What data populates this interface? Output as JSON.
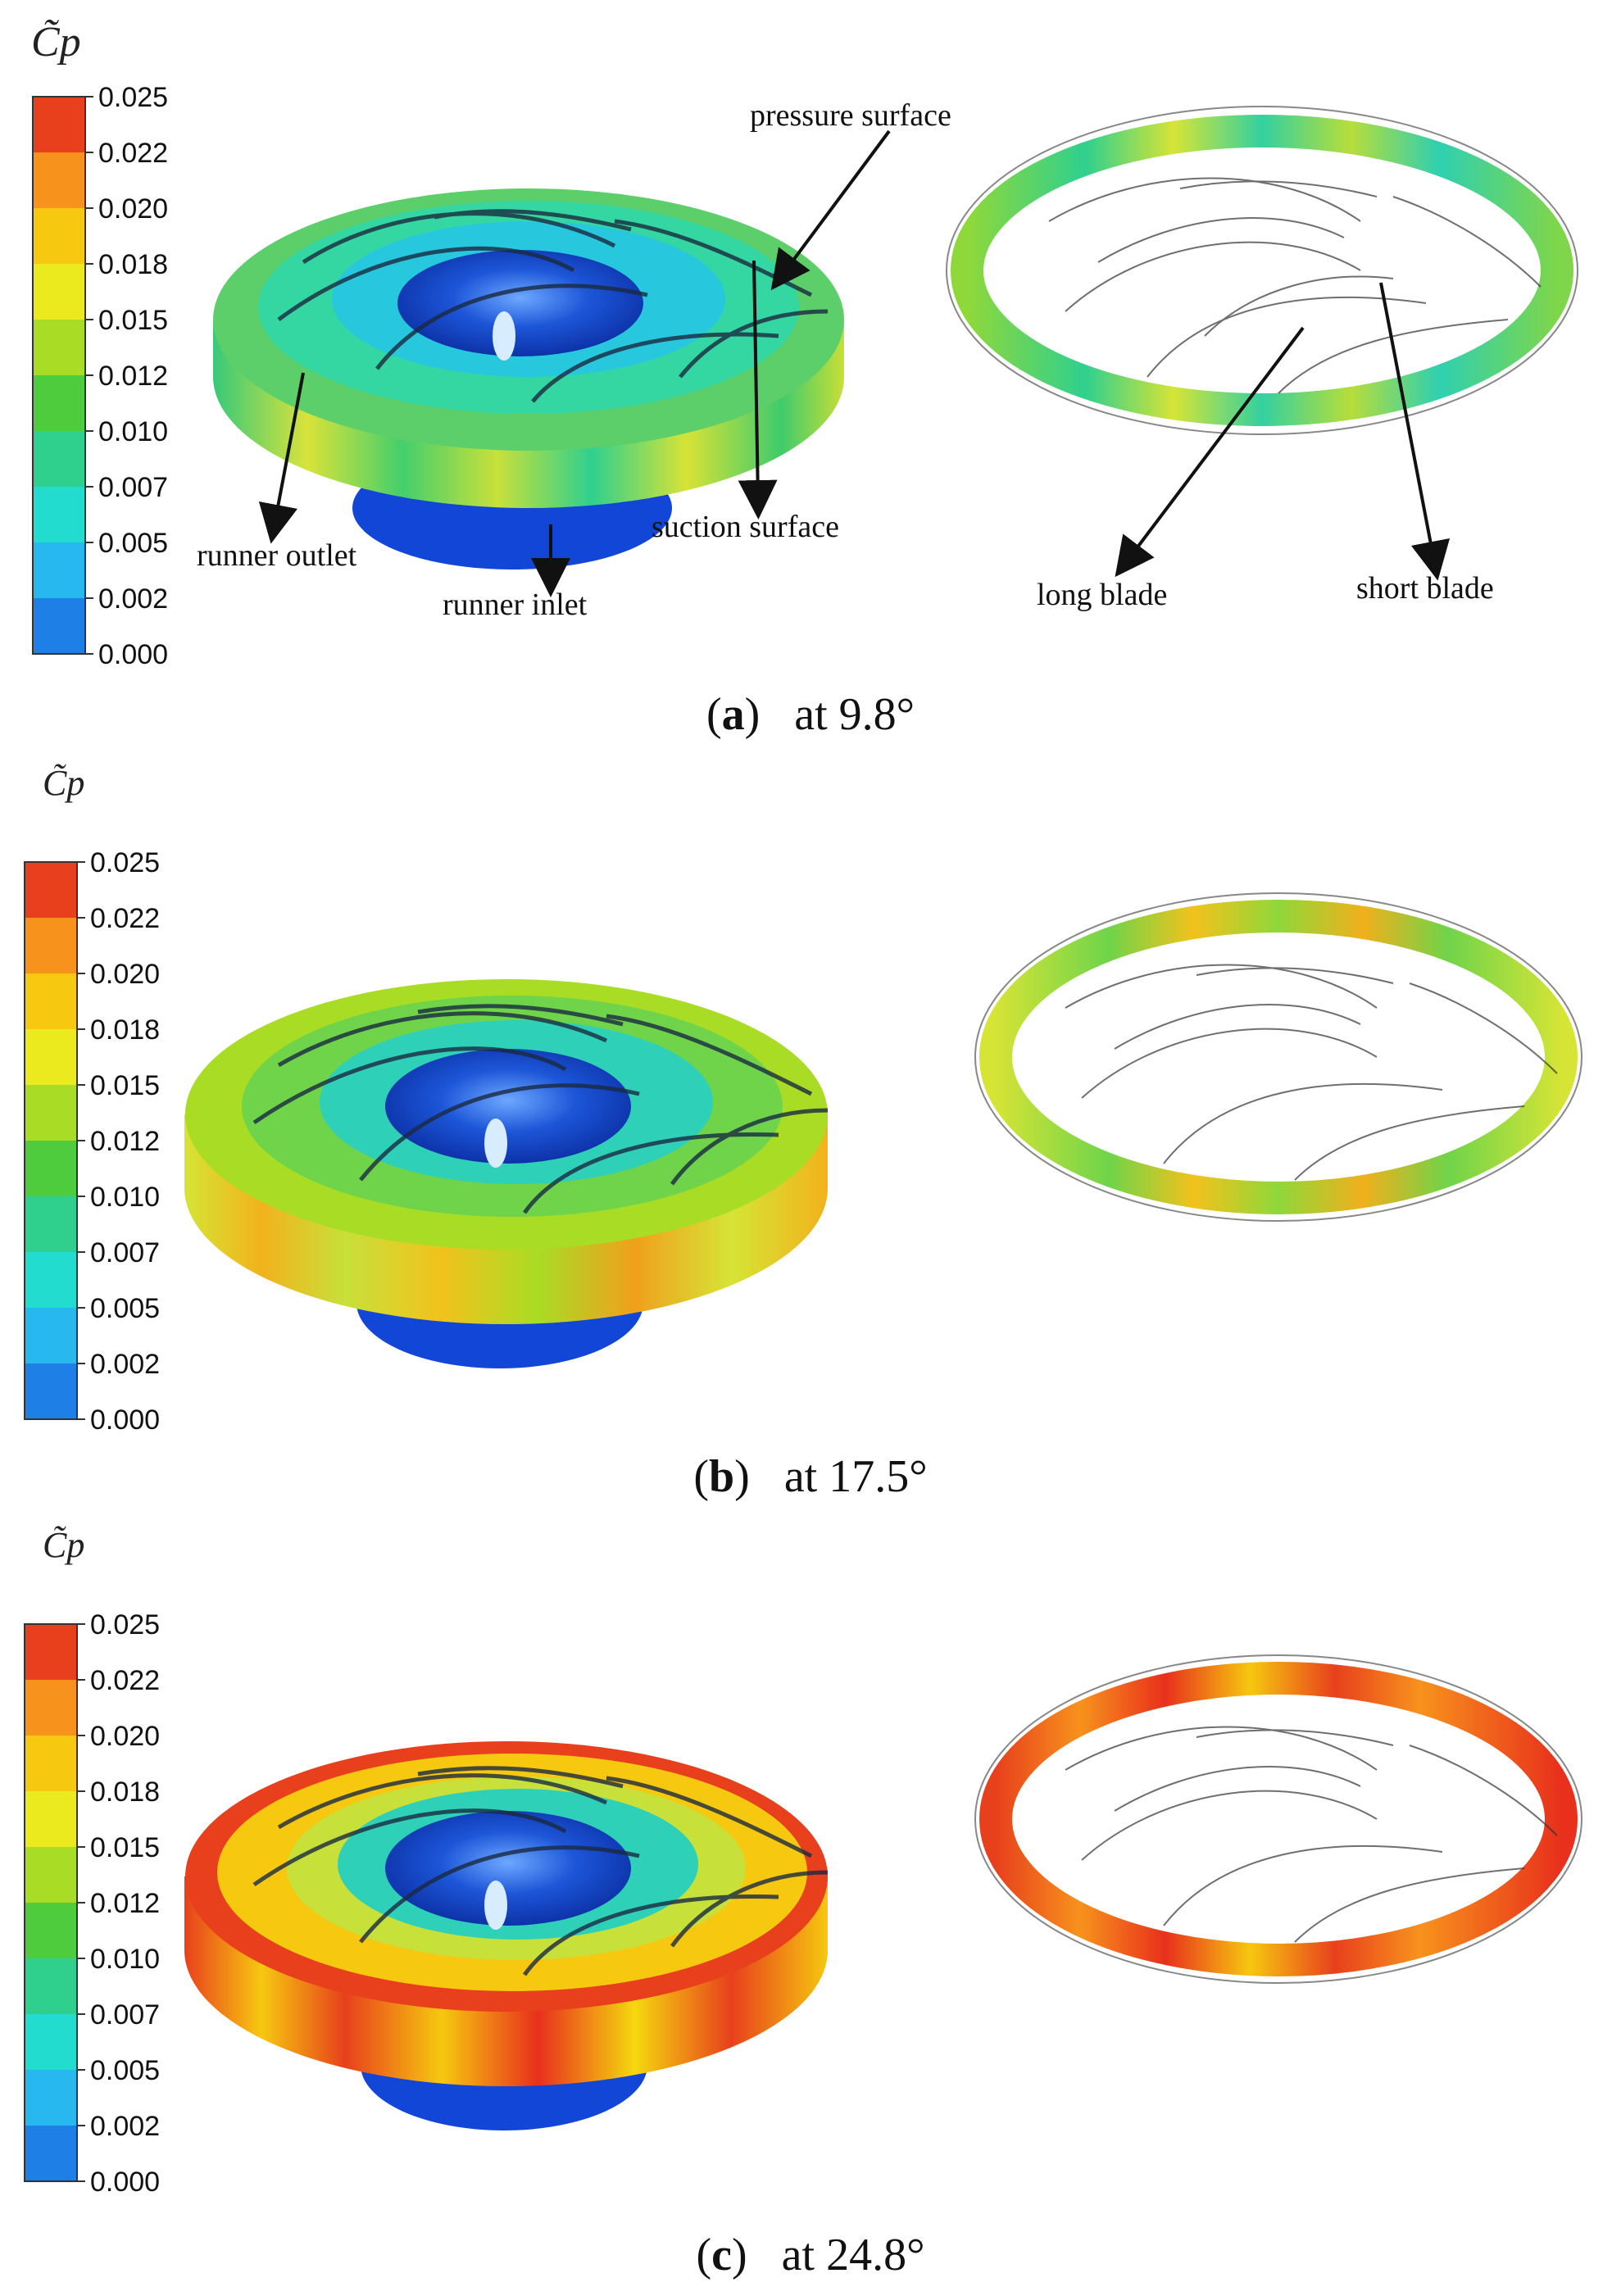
{
  "colorbar": {
    "title_a": "C̃p",
    "title_b": "C̃p",
    "title_c": "C̃p",
    "ticks": [
      "0.025",
      "0.022",
      "0.020",
      "0.018",
      "0.015",
      "0.012",
      "0.010",
      "0.007",
      "0.005",
      "0.002",
      "0.000"
    ],
    "colors": [
      "#e8401c",
      "#f7921c",
      "#f6c80f",
      "#eaea1e",
      "#a9dc25",
      "#4fcb3e",
      "#2fd08e",
      "#22dcd0",
      "#27b8ef",
      "#1e7fe6",
      "#1246d6"
    ]
  },
  "annotations": {
    "pressure_surface": "pressure surface",
    "suction_surface": "suction surface",
    "runner_outlet": "runner outlet",
    "runner_inlet": "runner inlet",
    "long_blade": "long blade",
    "short_blade": "short blade"
  },
  "panels": [
    {
      "letter": "a",
      "caption": "at 9.8°"
    },
    {
      "letter": "b",
      "caption": "at 17.5°"
    },
    {
      "letter": "c",
      "caption": "at 24.8°"
    }
  ]
}
